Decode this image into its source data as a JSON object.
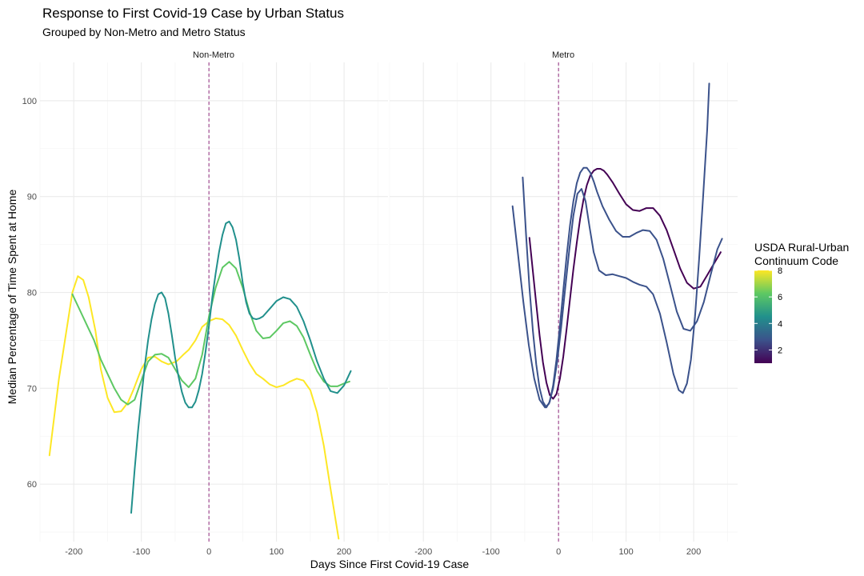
{
  "chart_data": {
    "type": "line",
    "title": "Response to First Covid-19 Case by Urban Status",
    "subtitle": "Grouped by Non-Metro and Metro Status",
    "xlabel": "Days Since First Covid-19 Case",
    "ylabel": "Median Percentage of Time Spent at Home",
    "xlim": [
      -250,
      265
    ],
    "ylim": [
      54,
      104
    ],
    "x_ticks": [
      -200,
      -100,
      0,
      100,
      200
    ],
    "x_tick_labels": [
      "-200",
      "-100",
      "0",
      "100",
      "200"
    ],
    "y_ticks": [
      60,
      70,
      80,
      90,
      100
    ],
    "y_tick_labels": [
      "60",
      "70",
      "80",
      "90",
      "100"
    ],
    "grid": true,
    "vline": 0,
    "vline_color": "#9b3d8a",
    "legend": {
      "title_line1": "USDA Rural-Urban",
      "title_line2": "Continuum Code",
      "placement": "right",
      "min": 1,
      "max": 8,
      "ticks": [
        2,
        4,
        6,
        8
      ],
      "tick_labels": [
        "2",
        "4",
        "6",
        "8"
      ],
      "colors": [
        "#440154",
        "#3b528b",
        "#21908c",
        "#5dc863",
        "#fde725"
      ]
    },
    "panels": [
      {
        "name": "Non-Metro",
        "series": [
          {
            "code": 8,
            "color": "#fde725",
            "x": [
              -236,
              -222,
              -212,
              -202,
              -194,
              -186,
              -178,
              -168,
              -160,
              -150,
              -140,
              -130,
              -120,
              -112,
              -100,
              -90,
              -80,
              -70,
              -60,
              -48,
              -38,
              -30,
              -20,
              -10,
              0,
              10,
              20,
              30,
              40,
              50,
              60,
              70,
              80,
              90,
              100,
              110,
              120,
              130,
              140,
              150,
              160,
              170,
              180,
              192
            ],
            "y": [
              63.0,
              71.0,
              75.5,
              80.0,
              81.7,
              81.3,
              79.5,
              76.0,
              72.0,
              69.0,
              67.5,
              67.6,
              68.5,
              69.8,
              72.0,
              73.2,
              73.3,
              72.8,
              72.5,
              72.8,
              73.5,
              74.0,
              75.0,
              76.4,
              77.0,
              77.3,
              77.2,
              76.6,
              75.5,
              74.0,
              72.6,
              71.5,
              71.0,
              70.4,
              70.1,
              70.3,
              70.7,
              71.0,
              70.8,
              69.8,
              67.5,
              64.0,
              59.5,
              54.3
            ]
          },
          {
            "code": 6,
            "color": "#5dc863",
            "x": [
              -202,
              -190,
              -180,
              -170,
              -160,
              -150,
              -140,
              -130,
              -120,
              -110,
              -100,
              -90,
              -80,
              -70,
              -60,
              -50,
              -40,
              -30,
              -20,
              -10,
              0,
              10,
              20,
              30,
              40,
              50,
              60,
              70,
              80,
              90,
              100,
              110,
              120,
              130,
              140,
              150,
              160,
              170,
              180,
              190,
              200,
              208
            ],
            "y": [
              79.8,
              78.0,
              76.5,
              75.0,
              73.0,
              71.5,
              70.0,
              68.8,
              68.3,
              68.8,
              70.8,
              72.8,
              73.5,
              73.6,
              73.2,
              72.0,
              70.8,
              70.1,
              71.0,
              73.5,
              77.5,
              80.5,
              82.6,
              83.2,
              82.5,
              80.5,
              78.0,
              76.0,
              75.2,
              75.3,
              76.0,
              76.8,
              77.0,
              76.5,
              75.3,
              73.5,
              71.8,
              70.7,
              70.2,
              70.2,
              70.5,
              70.7
            ]
          },
          {
            "code": 5,
            "color": "#21908c",
            "x": [
              -115,
              -110,
              -105,
              -100,
              -95,
              -90,
              -85,
              -80,
              -75,
              -70,
              -65,
              -60,
              -55,
              -50,
              -45,
              -40,
              -35,
              -30,
              -25,
              -20,
              -15,
              -10,
              -5,
              0,
              5,
              10,
              15,
              20,
              25,
              30,
              35,
              40,
              45,
              50,
              55,
              60,
              65,
              70,
              75,
              80,
              90,
              100,
              110,
              120,
              130,
              140,
              150,
              160,
              170,
              180,
              190,
              200,
              210
            ],
            "y": [
              57.0,
              61.5,
              65.5,
              69.0,
              72.3,
              75.0,
              77.2,
              78.8,
              79.8,
              80.0,
              79.4,
              77.8,
              75.6,
              73.2,
              71.2,
              69.6,
              68.5,
              68.0,
              68.0,
              68.6,
              69.8,
              71.5,
              73.8,
              76.5,
              79.5,
              82.0,
              84.2,
              86.0,
              87.2,
              87.4,
              86.8,
              85.5,
              83.5,
              81.0,
              79.0,
              77.8,
              77.3,
              77.2,
              77.3,
              77.5,
              78.3,
              79.1,
              79.5,
              79.3,
              78.5,
              77.0,
              75.0,
              72.8,
              71.0,
              69.7,
              69.5,
              70.3,
              71.8
            ]
          }
        ]
      },
      {
        "name": "Metro",
        "series": [
          {
            "code": 1,
            "color": "#440154",
            "x": [
              -43,
              -38,
              -33,
              -28,
              -23,
              -18,
              -13,
              -8,
              -3,
              2,
              7,
              12,
              17,
              22,
              27,
              32,
              37,
              42,
              47,
              52,
              57,
              62,
              67,
              72,
              80,
              90,
              100,
              110,
              120,
              130,
              140,
              150,
              160,
              170,
              180,
              190,
              200,
              210,
              220,
              230,
              240
            ],
            "y": [
              85.7,
              82.2,
              78.8,
              75.5,
              72.7,
              70.6,
              69.3,
              68.9,
              69.4,
              71.0,
              73.3,
              76.2,
              79.3,
              82.4,
              85.2,
              87.7,
              89.7,
              91.2,
              92.2,
              92.7,
              92.9,
              92.9,
              92.7,
              92.3,
              91.5,
              90.3,
              89.2,
              88.6,
              88.5,
              88.8,
              88.8,
              88.0,
              86.5,
              84.5,
              82.5,
              81.0,
              80.4,
              80.6,
              81.8,
              83.0,
              84.2
            ]
          },
          {
            "code": 2,
            "color": "#3b528b",
            "x": [
              -53,
              -48,
              -43,
              -38,
              -33,
              -28,
              -23,
              -18,
              -13,
              -8,
              -3,
              2,
              7,
              12,
              17,
              22,
              27,
              32,
              37,
              42,
              47,
              52,
              57,
              65,
              75,
              85,
              95,
              105,
              115,
              125,
              135,
              145,
              155,
              165,
              175,
              185,
              195,
              205,
              215,
              225,
              235,
              242
            ],
            "y": [
              92.0,
              86.0,
              80.5,
              76.0,
              72.5,
              70.0,
              68.6,
              68.0,
              68.6,
              70.3,
              73.0,
              76.5,
              80.2,
              83.8,
              87.0,
              89.5,
              91.4,
              92.5,
              93.0,
              93.0,
              92.5,
              91.6,
              90.5,
              89.0,
              87.6,
              86.4,
              85.8,
              85.8,
              86.2,
              86.5,
              86.4,
              85.5,
              83.5,
              80.8,
              78.0,
              76.2,
              76.0,
              77.0,
              79.0,
              81.8,
              84.5,
              85.6
            ]
          },
          {
            "code": 3,
            "color": "#3b528b",
            "x": [
              -68,
              -60,
              -52,
              -44,
              -36,
              -28,
              -20,
              -14,
              -8,
              -2,
              4,
              10,
              16,
              22,
              28,
              34,
              40,
              46,
              52,
              60,
              70,
              80,
              90,
              100,
              110,
              120,
              130,
              140,
              150,
              160,
              170,
              178,
              184,
              190,
              196,
              202,
              208,
              214,
              220,
              223
            ],
            "y": [
              89.0,
              84.0,
              79.0,
              74.5,
              71.0,
              68.8,
              68.0,
              68.4,
              70.0,
              72.8,
              76.4,
              80.5,
              84.5,
              88.0,
              90.3,
              90.8,
              89.5,
              86.8,
              84.2,
              82.3,
              81.8,
              81.9,
              81.7,
              81.5,
              81.1,
              80.8,
              80.6,
              79.8,
              77.8,
              74.8,
              71.5,
              69.8,
              69.5,
              70.5,
              73.0,
              77.5,
              83.5,
              90.0,
              97.0,
              101.8
            ]
          }
        ]
      }
    ]
  }
}
